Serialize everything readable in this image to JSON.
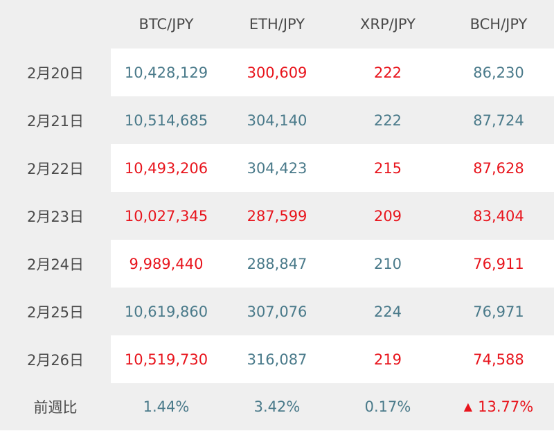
{
  "colors": {
    "up": "#e8141c",
    "down": "#4a7a8a",
    "label": "#4a4a4a",
    "row_shade": "#efefef"
  },
  "header": {
    "corner": "",
    "columns": [
      "BTC/JPY",
      "ETH/JPY",
      "XRP/JPY",
      "BCH/JPY"
    ]
  },
  "rows": [
    {
      "date": "2月20日",
      "values": [
        "10,428,129",
        "300,609",
        "222",
        "86,230"
      ],
      "colors": [
        "down",
        "up",
        "up",
        "down"
      ]
    },
    {
      "date": "2月21日",
      "values": [
        "10,514,685",
        "304,140",
        "222",
        "87,724"
      ],
      "colors": [
        "down",
        "down",
        "down",
        "down"
      ]
    },
    {
      "date": "2月22日",
      "values": [
        "10,493,206",
        "304,423",
        "215",
        "87,628"
      ],
      "colors": [
        "up",
        "down",
        "up",
        "up"
      ]
    },
    {
      "date": "2月23日",
      "values": [
        "10,027,345",
        "287,599",
        "209",
        "83,404"
      ],
      "colors": [
        "up",
        "up",
        "up",
        "up"
      ]
    },
    {
      "date": "2月24日",
      "values": [
        "9,989,440",
        "288,847",
        "210",
        "76,911"
      ],
      "colors": [
        "up",
        "down",
        "down",
        "up"
      ]
    },
    {
      "date": "2月25日",
      "values": [
        "10,619,860",
        "307,076",
        "224",
        "76,971"
      ],
      "colors": [
        "down",
        "down",
        "down",
        "down"
      ]
    },
    {
      "date": "2月26日",
      "values": [
        "10,519,730",
        "316,087",
        "219",
        "74,588"
      ],
      "colors": [
        "up",
        "down",
        "up",
        "up"
      ]
    }
  ],
  "footer": {
    "label": "前週比",
    "values": [
      "1.44%",
      "3.42%",
      "0.17%",
      "13.77%"
    ],
    "colors": [
      "down",
      "down",
      "down",
      "up"
    ],
    "arrow_icon": "triangle-up-icon",
    "arrow_glyph": "▲"
  }
}
